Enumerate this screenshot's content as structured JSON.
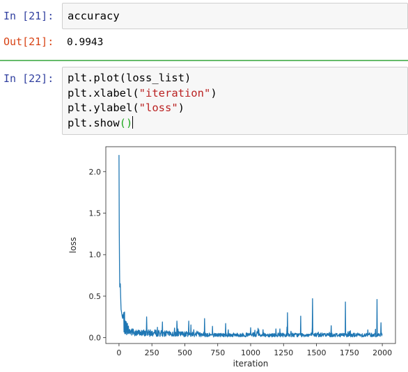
{
  "cells": [
    {
      "in_prompt": "In [21]:",
      "code_lines": [
        "accuracy"
      ],
      "out_prompt": "Out[21]:",
      "output": "0.9943"
    },
    {
      "in_prompt": "In [22]:",
      "code": {
        "l1": "plt.plot(loss_list)",
        "l2_a": "plt.xlabel(",
        "l2_s": "\"iteration\"",
        "l2_b": ")",
        "l3_a": "plt.ylabel(",
        "l3_s": "\"loss\"",
        "l3_b": ")",
        "l4_a": "plt.show",
        "l4_p": "()"
      }
    }
  ],
  "colors": {
    "in_prompt": "#303f9f",
    "out_prompt": "#d84315",
    "line": "#1f77b4",
    "selected_cell_bar": "#66bb6a"
  },
  "chart_data": {
    "type": "line",
    "xlabel": "iteration",
    "ylabel": "loss",
    "xlim": [
      -100,
      2100
    ],
    "ylim": [
      -0.07,
      2.3
    ],
    "x_ticks": [
      0,
      250,
      500,
      750,
      1000,
      1250,
      1500,
      1750,
      2000
    ],
    "x_tick_labels": [
      "0",
      "250",
      "500",
      "750",
      "1000",
      "1250",
      "1500",
      "1750",
      "2000"
    ],
    "y_ticks": [
      0.0,
      0.5,
      1.0,
      1.5,
      2.0
    ],
    "y_tick_labels": [
      "0.0",
      "0.5",
      "1.0",
      "1.5",
      "2.0"
    ],
    "series": [
      {
        "x": [
          0,
          2,
          5,
          10,
          15,
          20,
          25,
          30,
          40,
          50,
          60,
          80,
          100,
          150,
          200,
          300,
          400,
          500,
          600,
          700,
          800,
          900,
          1000,
          1100,
          1200,
          1300,
          1400,
          1500,
          1600,
          1700,
          1800,
          1900,
          2000
        ],
        "y": [
          2.2,
          1.3,
          0.6,
          0.65,
          0.35,
          0.3,
          0.25,
          0.22,
          0.15,
          0.12,
          0.1,
          0.07,
          0.06,
          0.05,
          0.05,
          0.05,
          0.04,
          0.04,
          0.04,
          0.03,
          0.03,
          0.03,
          0.03,
          0.03,
          0.03,
          0.03,
          0.03,
          0.03,
          0.03,
          0.03,
          0.03,
          0.03,
          0.03
        ],
        "spikes": [
          {
            "x": 210,
            "y": 0.25
          },
          {
            "x": 330,
            "y": 0.19
          },
          {
            "x": 440,
            "y": 0.2
          },
          {
            "x": 530,
            "y": 0.2
          },
          {
            "x": 650,
            "y": 0.23
          },
          {
            "x": 810,
            "y": 0.17
          },
          {
            "x": 1000,
            "y": 0.12
          },
          {
            "x": 1280,
            "y": 0.3
          },
          {
            "x": 1380,
            "y": 0.26
          },
          {
            "x": 1470,
            "y": 0.47
          },
          {
            "x": 1720,
            "y": 0.43
          },
          {
            "x": 1895,
            "y": 0.44
          },
          {
            "x": 1960,
            "y": 0.46
          },
          {
            "x": 1990,
            "y": 0.18
          }
        ]
      }
    ]
  }
}
